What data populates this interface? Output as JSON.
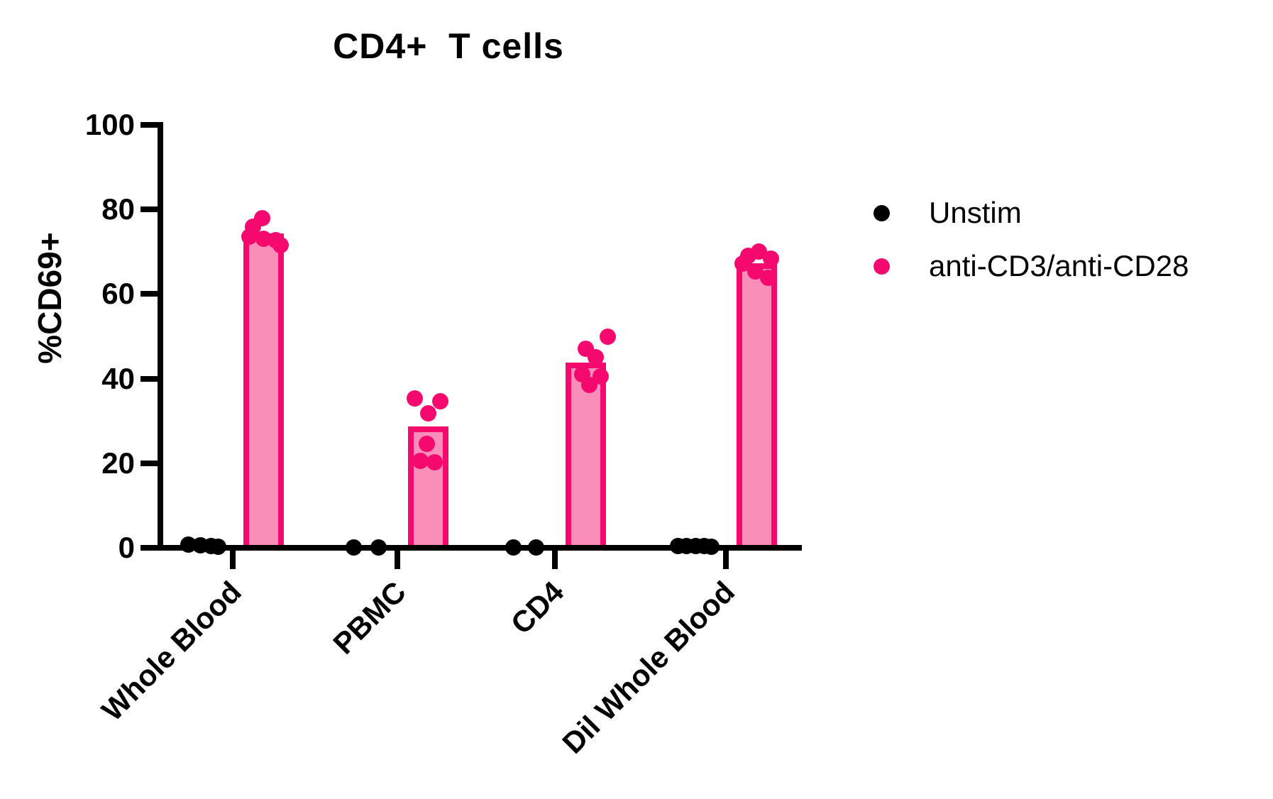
{
  "title": "CD4+  T cells",
  "y_axis_title": "%CD69+",
  "colors": {
    "unstim": "#000000",
    "stim": "#F5096F",
    "stim_fill": "#F98FB9",
    "axis": "#000000",
    "text": "#000000"
  },
  "legend": {
    "items": [
      {
        "label": "Unstim",
        "series": "unstim"
      },
      {
        "label": "anti-CD3/anti-CD28",
        "series": "stim"
      }
    ]
  },
  "chart_data": {
    "type": "bar",
    "subtype": "grouped-bar-with-scatter-overlay",
    "title": "CD4+  T cells",
    "xlabel": "",
    "ylabel": "%CD69+",
    "ylim": [
      0,
      100
    ],
    "yticks": [
      0,
      20,
      40,
      60,
      80,
      100
    ],
    "grid": false,
    "legend_position": "right",
    "categories": [
      "Whole Blood",
      "PBMC",
      "CD4",
      "Dil Whole Blood"
    ],
    "series": [
      {
        "name": "Unstim",
        "style": "scatter",
        "bar_values": null,
        "points_v_dx": [
          [
            [
              0.8,
              -63
            ],
            [
              0.6,
              -46
            ],
            [
              0.4,
              -31
            ],
            [
              0.3,
              -21
            ]
          ],
          [
            [
              0.1,
              -62
            ],
            [
              0.1,
              -27
            ]
          ],
          [
            [
              0.1,
              -59
            ],
            [
              0.1,
              -27
            ]
          ],
          [
            [
              0.5,
              -68
            ],
            [
              0.5,
              -56
            ],
            [
              0.4,
              -43
            ],
            [
              0.4,
              -31
            ],
            [
              0.3,
              -21
            ]
          ]
        ]
      },
      {
        "name": "anti-CD3/anti-CD28",
        "style": "bar+scatter",
        "bar_values": [
          73.7,
          28.0,
          43.1,
          66.6
        ],
        "points_v_dx": [
          [
            [
              78,
              -2
            ],
            [
              76,
              -15
            ],
            [
              73.5,
              -20
            ],
            [
              73,
              0
            ],
            [
              72.8,
              17
            ],
            [
              71.5,
              24
            ]
          ],
          [
            [
              35.3,
              -19
            ],
            [
              34.6,
              17
            ],
            [
              31.8,
              0
            ],
            [
              24.5,
              -2
            ],
            [
              20.5,
              -11
            ],
            [
              20.2,
              9
            ]
          ],
          [
            [
              50,
              31
            ],
            [
              47,
              0
            ],
            [
              45,
              14
            ],
            [
              41,
              -5
            ],
            [
              40.5,
              21
            ],
            [
              38.5,
              5
            ]
          ],
          [
            [
              70,
              3
            ],
            [
              69,
              -12
            ],
            [
              68.3,
              20
            ],
            [
              67.2,
              -20
            ],
            [
              65.3,
              -2
            ],
            [
              63.8,
              16
            ]
          ]
        ]
      }
    ]
  }
}
